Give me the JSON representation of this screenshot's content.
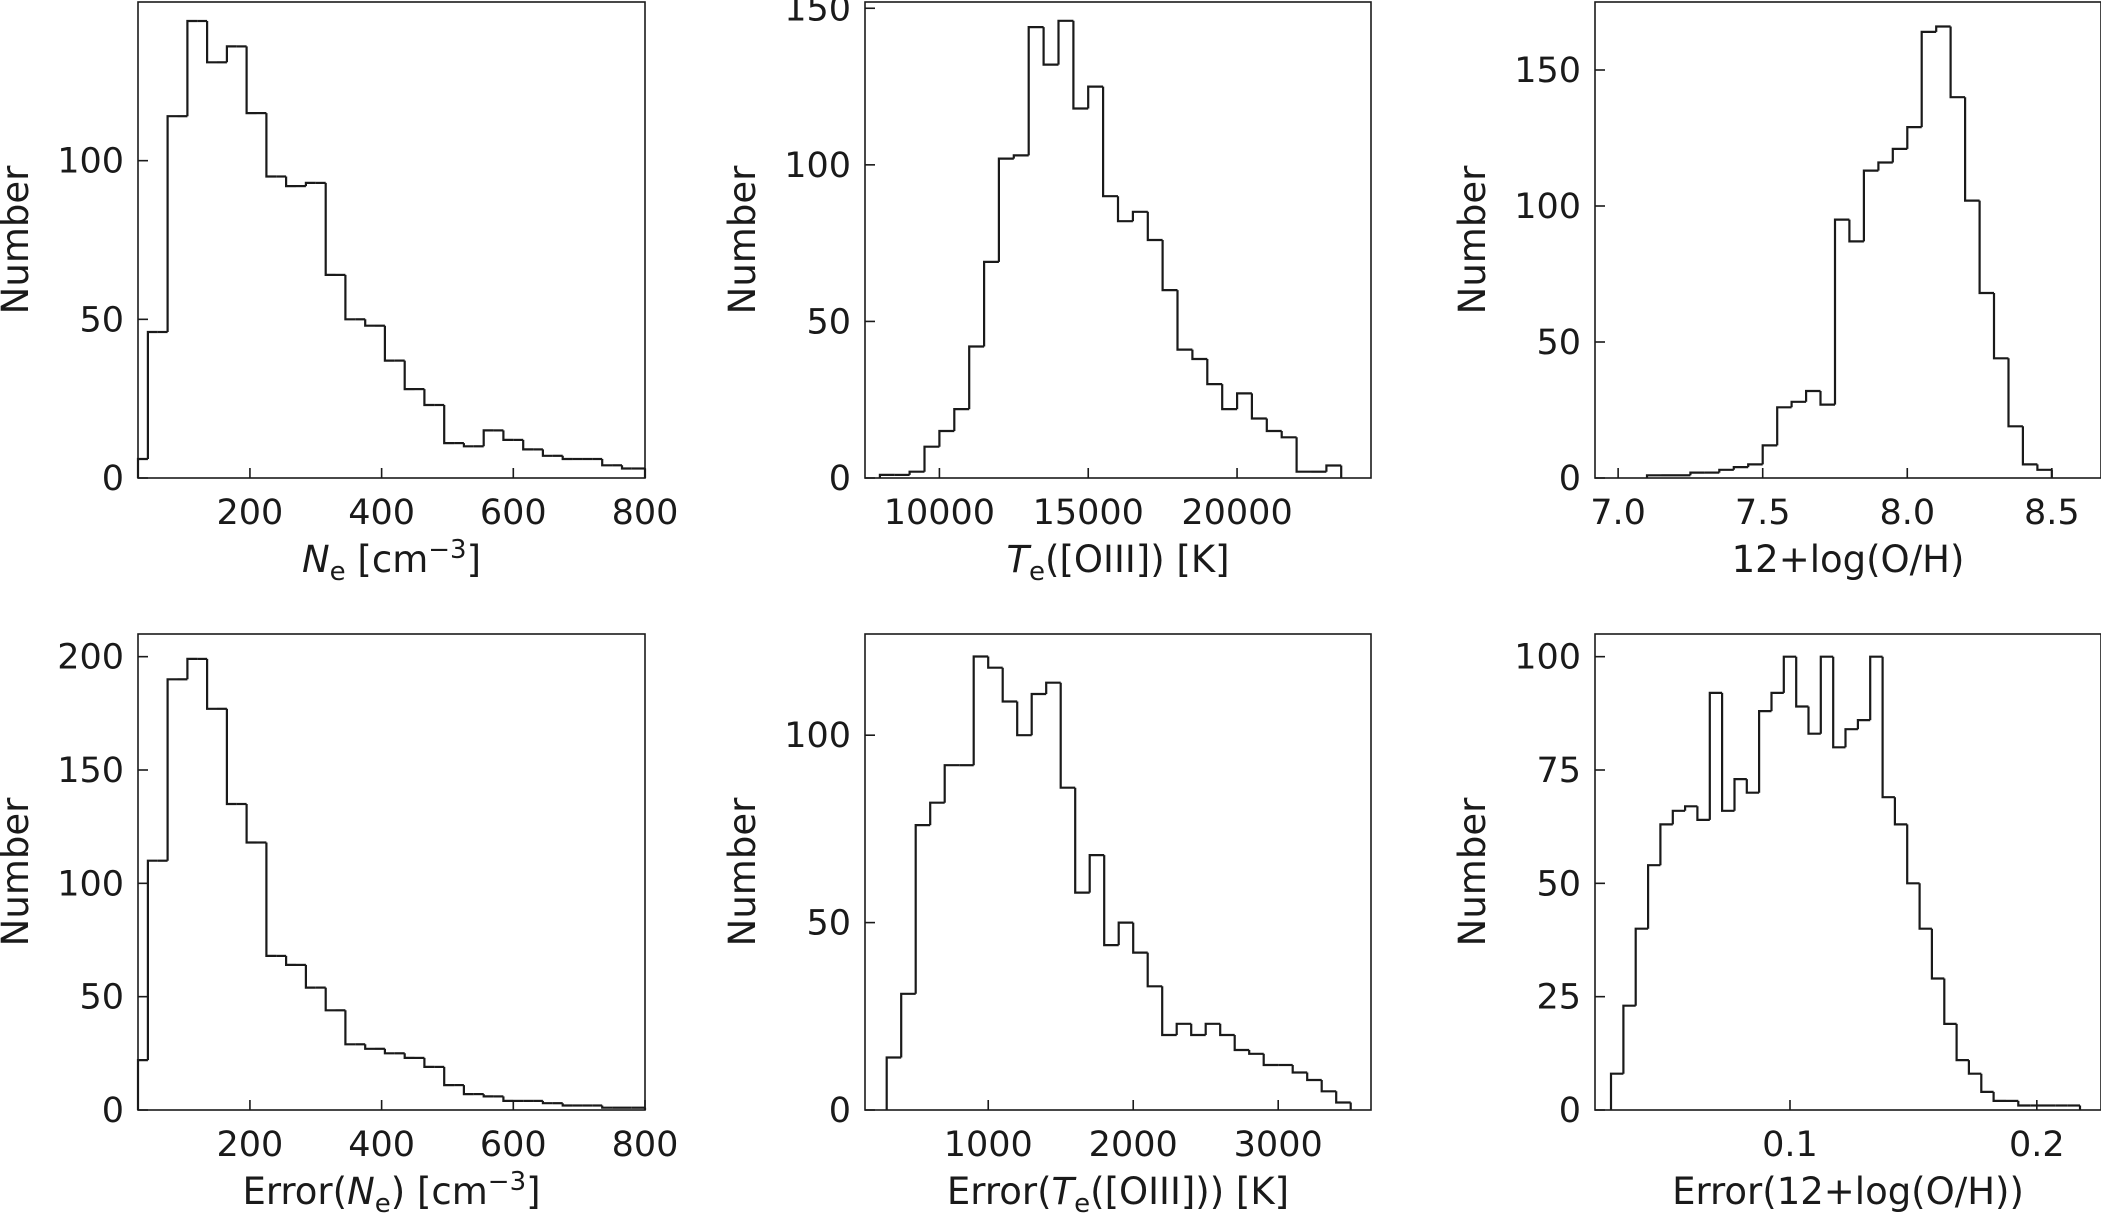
{
  "figure": {
    "panels_label": "Six-panel histogram grid"
  },
  "chart_data": [
    {
      "type": "histogram",
      "id": "ne",
      "xlabel": {
        "main": "N",
        "sub": "e",
        "rest": " [cm",
        "sup": "−3",
        "close": "]"
      },
      "ylabel": "Number",
      "xlim": [
        30,
        800
      ],
      "ylim": [
        0,
        150
      ],
      "xticks": [
        200,
        400,
        600,
        800
      ],
      "yticks": [
        0,
        50,
        100
      ],
      "bin_edges": [
        30,
        45,
        60,
        75,
        90,
        105,
        120,
        135,
        150,
        165,
        180,
        195,
        210,
        225,
        240,
        255,
        270,
        285,
        300,
        315,
        330,
        345,
        360,
        375,
        390,
        405,
        420,
        435,
        450,
        465,
        480,
        495,
        510,
        525,
        540,
        555,
        570,
        585,
        600,
        615,
        630,
        645,
        660,
        675,
        690,
        705,
        720,
        735,
        750,
        765,
        780,
        800
      ],
      "counts": [
        6,
        46,
        46,
        114,
        114,
        144,
        144,
        131,
        131,
        136,
        136,
        115,
        115,
        95,
        95,
        92,
        92,
        93,
        93,
        64,
        64,
        50,
        50,
        48,
        48,
        37,
        37,
        28,
        28,
        23,
        23,
        11,
        11,
        10,
        10,
        15,
        15,
        12,
        12,
        9,
        9,
        7,
        7,
        6,
        6,
        6,
        6,
        4,
        4,
        3,
        3
      ]
    },
    {
      "type": "histogram",
      "id": "te",
      "xlabel": {
        "main": "T",
        "sub": "e",
        "rest": "([OIII]) [K]",
        "sup": "",
        "close": ""
      },
      "ylabel": "Number",
      "xlim": [
        7500,
        24500
      ],
      "ylim": [
        0,
        152
      ],
      "xticks": [
        10000,
        15000,
        20000
      ],
      "yticks": [
        0,
        50,
        100,
        150
      ],
      "bin_edges": [
        8000,
        8500,
        9000,
        9500,
        10000,
        10500,
        11000,
        11500,
        12000,
        12500,
        13000,
        13500,
        14000,
        14500,
        15000,
        15500,
        16000,
        16500,
        17000,
        17500,
        18000,
        18500,
        19000,
        19500,
        20000,
        20500,
        21000,
        21500,
        22000,
        22500,
        23000,
        23500
      ],
      "counts": [
        1,
        1,
        2,
        10,
        15,
        22,
        42,
        69,
        102,
        103,
        144,
        132,
        146,
        118,
        125,
        90,
        82,
        85,
        76,
        60,
        41,
        38,
        30,
        22,
        27,
        19,
        15,
        13,
        2,
        2,
        4
      ]
    },
    {
      "type": "histogram",
      "id": "oh",
      "xlabel": {
        "main": "12+log(O/H)",
        "sub": "",
        "rest": "",
        "sup": "",
        "close": ""
      },
      "ylabel": "Number",
      "xlim": [
        6.92,
        8.67
      ],
      "ylim": [
        0,
        175
      ],
      "xticks": [
        7.0,
        7.5,
        8.0,
        8.5
      ],
      "xtick_labels": [
        "7.0",
        "7.5",
        "8.0",
        "8.5"
      ],
      "yticks": [
        0,
        50,
        100,
        150
      ],
      "bin_edges": [
        7.1,
        7.15,
        7.2,
        7.25,
        7.3,
        7.35,
        7.4,
        7.45,
        7.5,
        7.55,
        7.6,
        7.65,
        7.7,
        7.75,
        7.8,
        7.85,
        7.9,
        7.95,
        8.0,
        8.05,
        8.1,
        8.15,
        8.2,
        8.25,
        8.3,
        8.35,
        8.4,
        8.45,
        8.5
      ],
      "counts": [
        1,
        1,
        1,
        2,
        2,
        3,
        4,
        5,
        12,
        26,
        28,
        32,
        27,
        95,
        87,
        113,
        116,
        121,
        129,
        164,
        166,
        140,
        102,
        68,
        44,
        19,
        5,
        3
      ]
    },
    {
      "type": "histogram",
      "id": "ne_err",
      "xlabel": {
        "main": "Error(N",
        "sub": "e",
        "rest": ") [cm",
        "sup": "−3",
        "close": "]"
      },
      "ylabel": "Number",
      "xlim": [
        30,
        800
      ],
      "ylim": [
        0,
        210
      ],
      "xticks": [
        200,
        400,
        600,
        800
      ],
      "yticks": [
        0,
        50,
        100,
        150,
        200
      ],
      "bin_edges": [
        30,
        45,
        60,
        75,
        90,
        105,
        120,
        135,
        150,
        165,
        180,
        195,
        210,
        225,
        240,
        255,
        270,
        285,
        300,
        315,
        330,
        345,
        360,
        375,
        390,
        405,
        420,
        435,
        450,
        465,
        480,
        495,
        510,
        525,
        540,
        555,
        570,
        585,
        600,
        615,
        630,
        645,
        660,
        675,
        690,
        705,
        720,
        735,
        750,
        765,
        780,
        800
      ],
      "counts": [
        22,
        110,
        110,
        190,
        190,
        199,
        199,
        177,
        177,
        135,
        135,
        118,
        118,
        68,
        68,
        64,
        64,
        54,
        54,
        44,
        44,
        29,
        29,
        27,
        27,
        25,
        25,
        23,
        23,
        19,
        19,
        11,
        11,
        7,
        7,
        6,
        6,
        4,
        4,
        4,
        4,
        3,
        3,
        2,
        2,
        2,
        2,
        1,
        1,
        1,
        1
      ]
    },
    {
      "type": "histogram",
      "id": "te_err",
      "xlabel": {
        "main": "Error(T",
        "sub": "e",
        "rest": "([OIII])) [K]",
        "sup": "",
        "close": ""
      },
      "ylabel": "Number",
      "xlim": [
        150,
        3640
      ],
      "ylim": [
        0,
        127
      ],
      "xticks": [
        1000,
        2000,
        3000
      ],
      "yticks": [
        0,
        50,
        100
      ],
      "bin_edges": [
        300,
        400,
        500,
        600,
        700,
        800,
        900,
        1000,
        1100,
        1200,
        1300,
        1400,
        1500,
        1600,
        1700,
        1800,
        1900,
        2000,
        2100,
        2200,
        2300,
        2400,
        2500,
        2600,
        2700,
        2800,
        2900,
        3000,
        3100,
        3200,
        3300,
        3400,
        3500
      ],
      "counts": [
        14,
        31,
        76,
        82,
        92,
        92,
        121,
        118,
        109,
        100,
        111,
        114,
        86,
        58,
        68,
        44,
        50,
        42,
        33,
        20,
        23,
        20,
        23,
        20,
        16,
        15,
        12,
        12,
        10,
        8,
        5,
        2
      ]
    },
    {
      "type": "histogram",
      "id": "oh_err",
      "xlabel": {
        "main": "Error(12+log(O/H))",
        "sub": "",
        "rest": "",
        "sup": "",
        "close": ""
      },
      "ylabel": "Number",
      "xlim": [
        0.021,
        0.226
      ],
      "ylim": [
        0,
        105
      ],
      "xticks": [
        0.1,
        0.2
      ],
      "xtick_labels": [
        "0.1",
        "0.2"
      ],
      "yticks": [
        0,
        25,
        50,
        75,
        100
      ],
      "bin_edges": [
        0.0275,
        0.0325,
        0.0375,
        0.0425,
        0.0475,
        0.0525,
        0.0575,
        0.0625,
        0.0675,
        0.0725,
        0.0775,
        0.0825,
        0.0875,
        0.0925,
        0.0975,
        0.1025,
        0.1075,
        0.1125,
        0.1175,
        0.1225,
        0.1275,
        0.1325,
        0.1375,
        0.1425,
        0.1475,
        0.1525,
        0.1575,
        0.1625,
        0.1675,
        0.1725,
        0.1775,
        0.1825,
        0.1875,
        0.1925,
        0.1975,
        0.2025,
        0.2075,
        0.2125,
        0.2175
      ],
      "counts": [
        8,
        23,
        40,
        54,
        63,
        66,
        67,
        64,
        92,
        66,
        73,
        70,
        88,
        92,
        100,
        89,
        83,
        100,
        80,
        84,
        86,
        100,
        69,
        63,
        50,
        40,
        29,
        19,
        11,
        8,
        4,
        2,
        2,
        1,
        1,
        1,
        1,
        1
      ]
    }
  ]
}
